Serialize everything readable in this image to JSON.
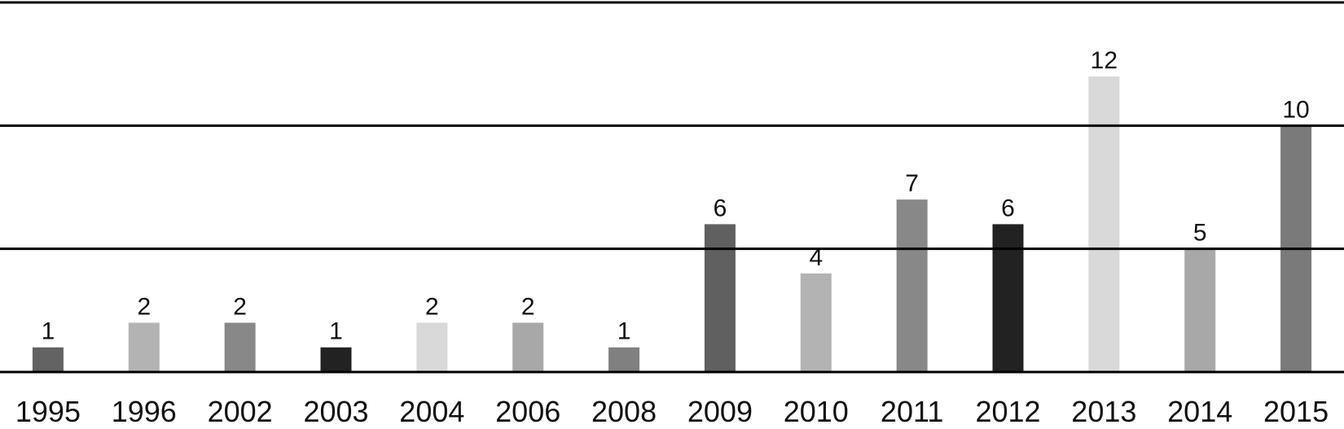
{
  "chart_data": {
    "type": "bar",
    "categories": [
      "1995",
      "1996",
      "2002",
      "2003",
      "2004",
      "2006",
      "2008",
      "2009",
      "2010",
      "2011",
      "2012",
      "2013",
      "2014",
      "2015"
    ],
    "values": [
      1,
      2,
      2,
      1,
      2,
      2,
      1,
      6,
      4,
      7,
      6,
      12,
      5,
      10
    ],
    "colors": [
      "#636363",
      "#b3b3b3",
      "#888888",
      "#222222",
      "#d9d9d9",
      "#a8a8a8",
      "#808080",
      "#606060",
      "#b3b3b3",
      "#888888",
      "#222222",
      "#d9d9d9",
      "#a8a8a8",
      "#7a7a7a"
    ],
    "ylim": [
      0,
      15
    ],
    "yticks": [
      0,
      5,
      10,
      15
    ],
    "grid": true
  }
}
